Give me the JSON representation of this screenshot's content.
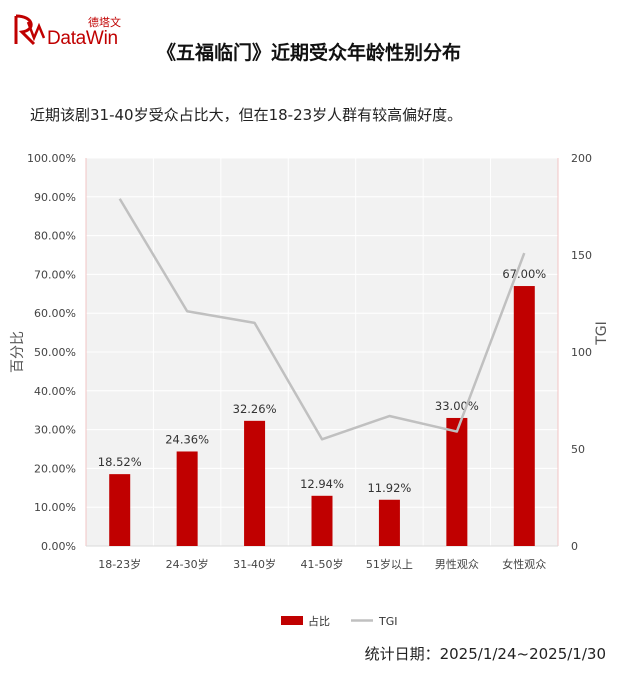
{
  "brand": {
    "logo_cn": "德塔文",
    "logo_en": "DataWin",
    "color": "#c00000"
  },
  "header": {
    "title": "《五福临门》近期受众年龄性别分布",
    "subtitle": "近期该剧31-40岁受众占比大，但在18-23岁人群有较高偏好度。"
  },
  "footer": {
    "date_text": "统计日期：2025/1/24~2025/1/30"
  },
  "chart_data": {
    "type": "bar",
    "categories": [
      "18-23岁",
      "24-30岁",
      "31-40岁",
      "41-50岁",
      "51岁以上",
      "男性观众",
      "女性观众"
    ],
    "series": [
      {
        "name": "占比",
        "type": "bar",
        "axis": "left",
        "color": "#c00000",
        "values": [
          18.52,
          24.36,
          32.26,
          12.94,
          11.92,
          33.0,
          67.0
        ],
        "labels": [
          "18.52%",
          "24.36%",
          "32.26%",
          "12.94%",
          "11.92%",
          "33.00%",
          "67.00%"
        ]
      },
      {
        "name": "TGI",
        "type": "line",
        "axis": "right",
        "color": "#c0c0c0",
        "values": [
          179,
          121,
          115,
          55,
          67,
          59,
          151
        ]
      }
    ],
    "ylabel": "百分比",
    "ylabel_right": "TGI",
    "ylim": [
      0,
      100
    ],
    "ylim_right": [
      0,
      200
    ],
    "yticks": [
      "0.00%",
      "10.00%",
      "20.00%",
      "30.00%",
      "40.00%",
      "50.00%",
      "60.00%",
      "70.00%",
      "80.00%",
      "90.00%",
      "100.00%"
    ],
    "yticks_right": [
      "0",
      "50",
      "100",
      "150",
      "200"
    ],
    "legend_position": "bottom",
    "grid": true,
    "plot_background": "#f2f2f2"
  }
}
